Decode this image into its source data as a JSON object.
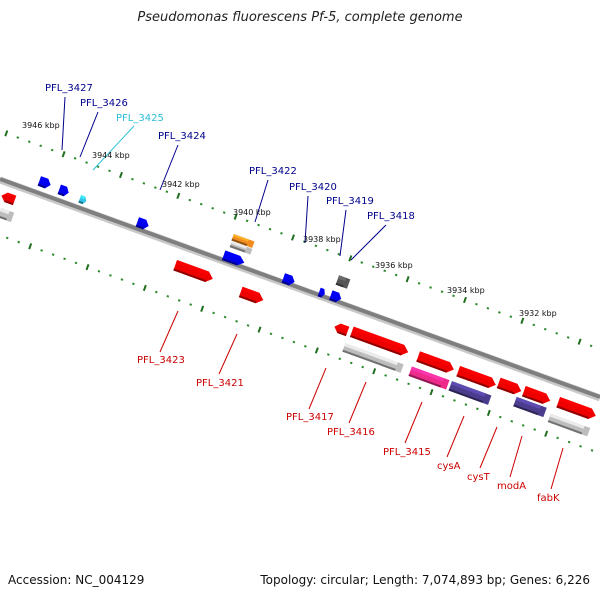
{
  "title": "Pseudomonas fluorescens Pf-5, complete genome",
  "footer": {
    "accession": "Accession: NC_004129",
    "summary": "Topology: circular; Length: 7,074,893 bp; Genes: 6,226"
  },
  "colors": {
    "backbone": "#7f7f7f",
    "tick_major": "#1f6f1f",
    "tick_minor": "#2e8b2e",
    "forward_gene": "#0000ee",
    "forward_gene_highlight": "#33c4e8",
    "reverse_gene": "#ee0000",
    "pseudo_gene": "#bdbdbd",
    "orange_gene": "#f28c1e",
    "magenta_gene": "#ee2a8a",
    "purple_gene": "#4b3c8e",
    "dark_gene": "#555555",
    "label_forward": "#00008b",
    "label_forward_highlight": "#2bbfd6",
    "label_reverse": "#cc0000"
  },
  "kbp_labels": [
    "3946 kbp",
    "3944 kbp",
    "3942 kbp",
    "3940 kbp",
    "3938 kbp",
    "3936 kbp",
    "3934 kbp",
    "3932 kbp"
  ],
  "top_genes": [
    {
      "label": "PFL_3427",
      "color": "label_forward"
    },
    {
      "label": "PFL_3426",
      "color": "label_forward"
    },
    {
      "label": "PFL_3425",
      "color": "label_forward_highlight"
    },
    {
      "label": "PFL_3424",
      "color": "label_forward"
    },
    {
      "label": "PFL_3422",
      "color": "label_forward"
    },
    {
      "label": "PFL_3420",
      "color": "label_forward"
    },
    {
      "label": "PFL_3419",
      "color": "label_forward"
    },
    {
      "label": "PFL_3418",
      "color": "label_forward"
    }
  ],
  "bottom_genes": [
    {
      "label": "PFL_3423"
    },
    {
      "label": "PFL_3421"
    },
    {
      "label": "PFL_3417"
    },
    {
      "label": "PFL_3416"
    },
    {
      "label": "PFL_3415"
    },
    {
      "label": "cysA"
    },
    {
      "label": "cysT"
    },
    {
      "label": "modA"
    },
    {
      "label": "fabK"
    }
  ]
}
